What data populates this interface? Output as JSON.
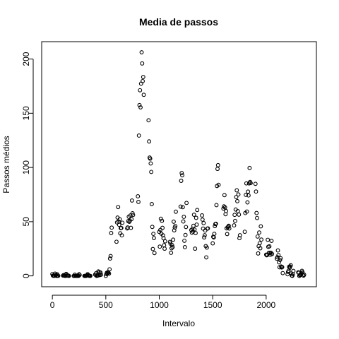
{
  "chart_data": {
    "type": "scatter",
    "title": "Media de passos",
    "xlabel": "Intervalo",
    "ylabel": "Passos médios",
    "xlim": [
      -100,
      2470
    ],
    "ylim": [
      -10,
      216
    ],
    "xticks": [
      0,
      500,
      1000,
      1500,
      2000
    ],
    "yticks": [
      0,
      50,
      100,
      150,
      200
    ],
    "marker": "open-circle",
    "grid": false,
    "points": [
      [
        0,
        1.7
      ],
      [
        5,
        0.3
      ],
      [
        10,
        0.1
      ],
      [
        15,
        0.2
      ],
      [
        20,
        0.1
      ],
      [
        25,
        2.1
      ],
      [
        30,
        0.5
      ],
      [
        35,
        0.9
      ],
      [
        40,
        0
      ],
      [
        45,
        1.5
      ],
      [
        50,
        0.3
      ],
      [
        55,
        0.1
      ],
      [
        100,
        0.3
      ],
      [
        105,
        0.7
      ],
      [
        110,
        0.2
      ],
      [
        115,
        0.3
      ],
      [
        120,
        0
      ],
      [
        125,
        1.1
      ],
      [
        130,
        1.8
      ],
      [
        135,
        0.2
      ],
      [
        140,
        0.2
      ],
      [
        145,
        0.4
      ],
      [
        150,
        0.3
      ],
      [
        155,
        0
      ],
      [
        200,
        0
      ],
      [
        205,
        0
      ],
      [
        210,
        1.1
      ],
      [
        215,
        0
      ],
      [
        220,
        0
      ],
      [
        225,
        0.1
      ],
      [
        230,
        0
      ],
      [
        235,
        0.2
      ],
      [
        240,
        0
      ],
      [
        245,
        0
      ],
      [
        250,
        1.5
      ],
      [
        255,
        0.9
      ],
      [
        300,
        0
      ],
      [
        305,
        0
      ],
      [
        310,
        0
      ],
      [
        315,
        0
      ],
      [
        320,
        0.2
      ],
      [
        325,
        0.6
      ],
      [
        330,
        1.6
      ],
      [
        335,
        0.6
      ],
      [
        340,
        0.5
      ],
      [
        345,
        0.1
      ],
      [
        350,
        0
      ],
      [
        355,
        0
      ],
      [
        400,
        1.2
      ],
      [
        405,
        0.9
      ],
      [
        410,
        2.6
      ],
      [
        415,
        0
      ],
      [
        420,
        0.3
      ],
      [
        425,
        0.3
      ],
      [
        430,
        4.1
      ],
      [
        435,
        0.7
      ],
      [
        440,
        3.5
      ],
      [
        445,
        0.8
      ],
      [
        450,
        3.1
      ],
      [
        455,
        1.1
      ],
      [
        500,
        0
      ],
      [
        505,
        1.6
      ],
      [
        510,
        3
      ],
      [
        515,
        2.2
      ],
      [
        520,
        3.3
      ],
      [
        525,
        3
      ],
      [
        530,
        2.1
      ],
      [
        535,
        6.1
      ],
      [
        540,
        16
      ],
      [
        545,
        18.3
      ],
      [
        550,
        39.5
      ],
      [
        555,
        44.5
      ],
      [
        600,
        31.5
      ],
      [
        605,
        49.3
      ],
      [
        610,
        53.8
      ],
      [
        615,
        63.5
      ],
      [
        620,
        50
      ],
      [
        625,
        47.1
      ],
      [
        630,
        52.2
      ],
      [
        635,
        39.3
      ],
      [
        640,
        44
      ],
      [
        645,
        44.2
      ],
      [
        650,
        37.4
      ],
      [
        655,
        49
      ],
      [
        700,
        43.8
      ],
      [
        705,
        44.7
      ],
      [
        710,
        50.5
      ],
      [
        715,
        54.5
      ],
      [
        720,
        49.9
      ],
      [
        725,
        51
      ],
      [
        730,
        55.7
      ],
      [
        735,
        44.3
      ],
      [
        740,
        52.3
      ],
      [
        745,
        69.5
      ],
      [
        750,
        57.8
      ],
      [
        755,
        56.2
      ],
      [
        800,
        73.4
      ],
      [
        805,
        68.2
      ],
      [
        810,
        129.4
      ],
      [
        815,
        157.5
      ],
      [
        820,
        171.2
      ],
      [
        825,
        155.4
      ],
      [
        830,
        177.3
      ],
      [
        835,
        206.2
      ],
      [
        840,
        195.9
      ],
      [
        845,
        179.6
      ],
      [
        850,
        183.4
      ],
      [
        855,
        167
      ],
      [
        900,
        143.5
      ],
      [
        905,
        124
      ],
      [
        910,
        109.1
      ],
      [
        915,
        108.1
      ],
      [
        920,
        103.7
      ],
      [
        925,
        95.9
      ],
      [
        930,
        66.2
      ],
      [
        935,
        45.2
      ],
      [
        940,
        24.8
      ],
      [
        945,
        38.8
      ],
      [
        950,
        34.9
      ],
      [
        955,
        21.1
      ],
      [
        1000,
        40.6
      ],
      [
        1005,
        27
      ],
      [
        1010,
        42.4
      ],
      [
        1015,
        52.7
      ],
      [
        1020,
        38.9
      ],
      [
        1025,
        50.8
      ],
      [
        1030,
        44.3
      ],
      [
        1035,
        37.4
      ],
      [
        1040,
        34.7
      ],
      [
        1045,
        28.3
      ],
      [
        1050,
        25.1
      ],
      [
        1055,
        31.9
      ],
      [
        1100,
        31.4
      ],
      [
        1105,
        29.7
      ],
      [
        1110,
        21.3
      ],
      [
        1115,
        25.5
      ],
      [
        1120,
        28.4
      ],
      [
        1125,
        26.5
      ],
      [
        1130,
        33.4
      ],
      [
        1135,
        50
      ],
      [
        1140,
        42
      ],
      [
        1145,
        44.6
      ],
      [
        1150,
        46
      ],
      [
        1155,
        59.2
      ],
      [
        1200,
        63.9
      ],
      [
        1205,
        87.7
      ],
      [
        1210,
        94.8
      ],
      [
        1215,
        92.8
      ],
      [
        1220,
        63.4
      ],
      [
        1225,
        50.2
      ],
      [
        1230,
        54.5
      ],
      [
        1235,
        32.4
      ],
      [
        1240,
        26.5
      ],
      [
        1245,
        37.7
      ],
      [
        1250,
        45.1
      ],
      [
        1255,
        67.3
      ],
      [
        1300,
        42.3
      ],
      [
        1305,
        39.9
      ],
      [
        1310,
        43.3
      ],
      [
        1315,
        40.9
      ],
      [
        1320,
        46.2
      ],
      [
        1325,
        56.4
      ],
      [
        1330,
        42.8
      ],
      [
        1335,
        25.1
      ],
      [
        1340,
        39.5
      ],
      [
        1345,
        53.5
      ],
      [
        1350,
        47.3
      ],
      [
        1355,
        60.8
      ],
      [
        1400,
        55.8
      ],
      [
        1405,
        51.9
      ],
      [
        1410,
        43.6
      ],
      [
        1415,
        48.7
      ],
      [
        1420,
        35.5
      ],
      [
        1425,
        37.5
      ],
      [
        1430,
        41.8
      ],
      [
        1435,
        27.5
      ],
      [
        1440,
        17.1
      ],
      [
        1445,
        26.1
      ],
      [
        1450,
        43.6
      ],
      [
        1455,
        43.8
      ],
      [
        1500,
        30
      ],
      [
        1505,
        36.1
      ],
      [
        1510,
        35.5
      ],
      [
        1515,
        38.8
      ],
      [
        1520,
        45.9
      ],
      [
        1525,
        47.8
      ],
      [
        1530,
        48.1
      ],
      [
        1535,
        65.3
      ],
      [
        1540,
        82.9
      ],
      [
        1545,
        98.7
      ],
      [
        1550,
        102.1
      ],
      [
        1555,
        84
      ],
      [
        1600,
        62.1
      ],
      [
        1605,
        64.1
      ],
      [
        1610,
        74.5
      ],
      [
        1615,
        63.2
      ],
      [
        1620,
        56.9
      ],
      [
        1625,
        59.8
      ],
      [
        1630,
        43.9
      ],
      [
        1635,
        38.6
      ],
      [
        1640,
        44.7
      ],
      [
        1645,
        45.5
      ],
      [
        1650,
        46.2
      ],
      [
        1655,
        43.7
      ],
      [
        1700,
        46.6
      ],
      [
        1705,
        56.3
      ],
      [
        1710,
        50.7
      ],
      [
        1715,
        61.2
      ],
      [
        1720,
        72.7
      ],
      [
        1725,
        78.9
      ],
      [
        1730,
        68.9
      ],
      [
        1735,
        59.7
      ],
      [
        1740,
        75.1
      ],
      [
        1745,
        56.5
      ],
      [
        1750,
        34.8
      ],
      [
        1755,
        37.5
      ],
      [
        1800,
        40.7
      ],
      [
        1805,
        58
      ],
      [
        1810,
        74.7
      ],
      [
        1815,
        85.3
      ],
      [
        1820,
        59.3
      ],
      [
        1825,
        67.8
      ],
      [
        1830,
        77.7
      ],
      [
        1835,
        74.2
      ],
      [
        1840,
        85.3
      ],
      [
        1845,
        99.5
      ],
      [
        1850,
        86.6
      ],
      [
        1855,
        85.6
      ],
      [
        1900,
        84.9
      ],
      [
        1905,
        77.8
      ],
      [
        1910,
        58
      ],
      [
        1915,
        53.4
      ],
      [
        1920,
        36.3
      ],
      [
        1925,
        20.7
      ],
      [
        1930,
        27.4
      ],
      [
        1935,
        40
      ],
      [
        1940,
        30.2
      ],
      [
        1945,
        25.5
      ],
      [
        1950,
        45.7
      ],
      [
        1955,
        33.5
      ],
      [
        2000,
        19.6
      ],
      [
        2005,
        19
      ],
      [
        2010,
        19.3
      ],
      [
        2015,
        33.3
      ],
      [
        2020,
        26.8
      ],
      [
        2025,
        21.2
      ],
      [
        2030,
        27.3
      ],
      [
        2035,
        21.3
      ],
      [
        2040,
        19.5
      ],
      [
        2045,
        21.3
      ],
      [
        2050,
        32.3
      ],
      [
        2055,
        20.2
      ],
      [
        2100,
        15.9
      ],
      [
        2105,
        17.2
      ],
      [
        2110,
        23.5
      ],
      [
        2115,
        19.2
      ],
      [
        2120,
        12.5
      ],
      [
        2125,
        8
      ],
      [
        2130,
        14.7
      ],
      [
        2135,
        16.3
      ],
      [
        2140,
        8.7
      ],
      [
        2145,
        7.8
      ],
      [
        2150,
        8.1
      ],
      [
        2155,
        2.6
      ],
      [
        2200,
        1.5
      ],
      [
        2205,
        3.7
      ],
      [
        2210,
        4.8
      ],
      [
        2215,
        8.5
      ],
      [
        2220,
        7.5
      ],
      [
        2225,
        8.7
      ],
      [
        2230,
        9.8
      ],
      [
        2235,
        2.2
      ],
      [
        2240,
        0.3
      ],
      [
        2245,
        0.1
      ],
      [
        2250,
        1.6
      ],
      [
        2255,
        4.6
      ],
      [
        2300,
        3.3
      ],
      [
        2305,
        2.8
      ],
      [
        2310,
        0
      ],
      [
        2315,
        0.8
      ],
      [
        2320,
        1
      ],
      [
        2325,
        1.6
      ],
      [
        2330,
        2.6
      ],
      [
        2335,
        4.7
      ],
      [
        2340,
        3.3
      ],
      [
        2345,
        0.6
      ],
      [
        2350,
        0.2
      ],
      [
        2355,
        1.1
      ]
    ]
  }
}
